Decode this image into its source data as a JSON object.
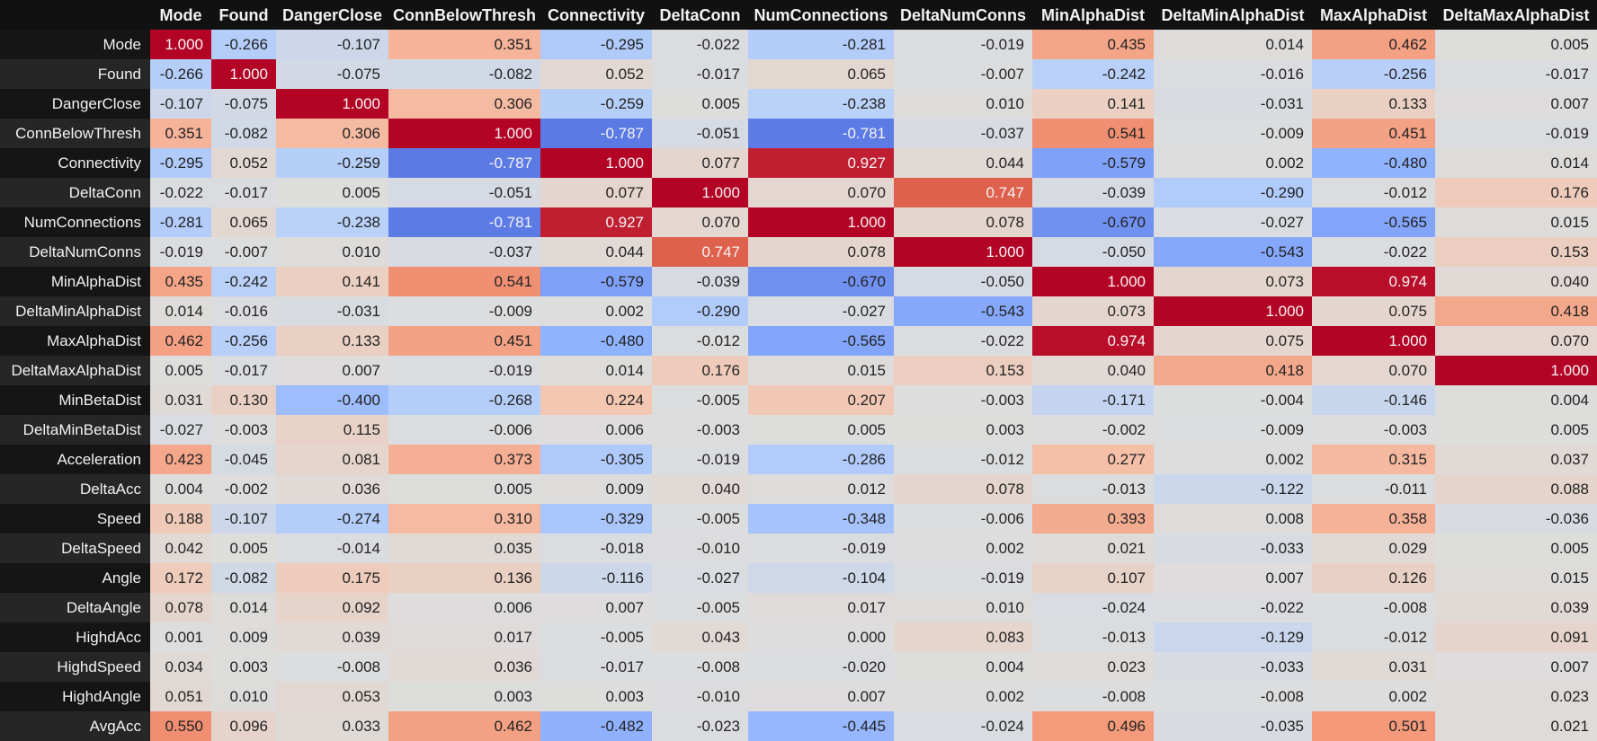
{
  "chart_data": {
    "type": "heatmap",
    "colormap": "coolwarm",
    "vmin": -1,
    "vmax": 1,
    "columns": [
      "Mode",
      "Found",
      "DangerClose",
      "ConnBelowThresh",
      "Connectivity",
      "DeltaConn",
      "NumConnections",
      "DeltaNumConns",
      "MinAlphaDist",
      "DeltaMinAlphaDist",
      "MaxAlphaDist",
      "DeltaMaxAlphaDist"
    ],
    "rows": [
      {
        "label": "Mode",
        "values": [
          "1.000",
          "-0.266",
          "-0.107",
          "0.351",
          "-0.295",
          "-0.022",
          "-0.281",
          "-0.019",
          "0.435",
          "0.014",
          "0.462",
          "0.005"
        ]
      },
      {
        "label": "Found",
        "values": [
          "-0.266",
          "1.000",
          "-0.075",
          "-0.082",
          "0.052",
          "-0.017",
          "0.065",
          "-0.007",
          "-0.242",
          "-0.016",
          "-0.256",
          "-0.017"
        ]
      },
      {
        "label": "DangerClose",
        "values": [
          "-0.107",
          "-0.075",
          "1.000",
          "0.306",
          "-0.259",
          "0.005",
          "-0.238",
          "0.010",
          "0.141",
          "-0.031",
          "0.133",
          "0.007"
        ]
      },
      {
        "label": "ConnBelowThresh",
        "values": [
          "0.351",
          "-0.082",
          "0.306",
          "1.000",
          "-0.787",
          "-0.051",
          "-0.781",
          "-0.037",
          "0.541",
          "-0.009",
          "0.451",
          "-0.019"
        ]
      },
      {
        "label": "Connectivity",
        "values": [
          "-0.295",
          "0.052",
          "-0.259",
          "-0.787",
          "1.000",
          "0.077",
          "0.927",
          "0.044",
          "-0.579",
          "0.002",
          "-0.480",
          "0.014"
        ]
      },
      {
        "label": "DeltaConn",
        "values": [
          "-0.022",
          "-0.017",
          "0.005",
          "-0.051",
          "0.077",
          "1.000",
          "0.070",
          "0.747",
          "-0.039",
          "-0.290",
          "-0.012",
          "0.176"
        ]
      },
      {
        "label": "NumConnections",
        "values": [
          "-0.281",
          "0.065",
          "-0.238",
          "-0.781",
          "0.927",
          "0.070",
          "1.000",
          "0.078",
          "-0.670",
          "-0.027",
          "-0.565",
          "0.015"
        ]
      },
      {
        "label": "DeltaNumConns",
        "values": [
          "-0.019",
          "-0.007",
          "0.010",
          "-0.037",
          "0.044",
          "0.747",
          "0.078",
          "1.000",
          "-0.050",
          "-0.543",
          "-0.022",
          "0.153"
        ]
      },
      {
        "label": "MinAlphaDist",
        "values": [
          "0.435",
          "-0.242",
          "0.141",
          "0.541",
          "-0.579",
          "-0.039",
          "-0.670",
          "-0.050",
          "1.000",
          "0.073",
          "0.974",
          "0.040"
        ]
      },
      {
        "label": "DeltaMinAlphaDist",
        "values": [
          "0.014",
          "-0.016",
          "-0.031",
          "-0.009",
          "0.002",
          "-0.290",
          "-0.027",
          "-0.543",
          "0.073",
          "1.000",
          "0.075",
          "0.418"
        ]
      },
      {
        "label": "MaxAlphaDist",
        "values": [
          "0.462",
          "-0.256",
          "0.133",
          "0.451",
          "-0.480",
          "-0.012",
          "-0.565",
          "-0.022",
          "0.974",
          "0.075",
          "1.000",
          "0.070"
        ]
      },
      {
        "label": "DeltaMaxAlphaDist",
        "values": [
          "0.005",
          "-0.017",
          "0.007",
          "-0.019",
          "0.014",
          "0.176",
          "0.015",
          "0.153",
          "0.040",
          "0.418",
          "0.070",
          "1.000"
        ]
      },
      {
        "label": "MinBetaDist",
        "values": [
          "0.031",
          "0.130",
          "-0.400",
          "-0.268",
          "0.224",
          "-0.005",
          "0.207",
          "-0.003",
          "-0.171",
          "-0.004",
          "-0.146",
          "0.004"
        ]
      },
      {
        "label": "DeltaMinBetaDist",
        "values": [
          "-0.027",
          "-0.003",
          "0.115",
          "-0.006",
          "0.006",
          "-0.003",
          "0.005",
          "0.003",
          "-0.002",
          "-0.009",
          "-0.003",
          "0.005"
        ]
      },
      {
        "label": "Acceleration",
        "values": [
          "0.423",
          "-0.045",
          "0.081",
          "0.373",
          "-0.305",
          "-0.019",
          "-0.286",
          "-0.012",
          "0.277",
          "0.002",
          "0.315",
          "0.037"
        ]
      },
      {
        "label": "DeltaAcc",
        "values": [
          "0.004",
          "-0.002",
          "0.036",
          "0.005",
          "0.009",
          "0.040",
          "0.012",
          "0.078",
          "-0.013",
          "-0.122",
          "-0.011",
          "0.088"
        ]
      },
      {
        "label": "Speed",
        "values": [
          "0.188",
          "-0.107",
          "-0.274",
          "0.310",
          "-0.329",
          "-0.005",
          "-0.348",
          "-0.006",
          "0.393",
          "0.008",
          "0.358",
          "-0.036"
        ]
      },
      {
        "label": "DeltaSpeed",
        "values": [
          "0.042",
          "0.005",
          "-0.014",
          "0.035",
          "-0.018",
          "-0.010",
          "-0.019",
          "0.002",
          "0.021",
          "-0.033",
          "0.029",
          "0.005"
        ]
      },
      {
        "label": "Angle",
        "values": [
          "0.172",
          "-0.082",
          "0.175",
          "0.136",
          "-0.116",
          "-0.027",
          "-0.104",
          "-0.019",
          "0.107",
          "0.007",
          "0.126",
          "0.015"
        ]
      },
      {
        "label": "DeltaAngle",
        "values": [
          "0.078",
          "0.014",
          "0.092",
          "0.006",
          "0.007",
          "-0.005",
          "0.017",
          "0.010",
          "-0.024",
          "-0.022",
          "-0.008",
          "0.039"
        ]
      },
      {
        "label": "HighdAcc",
        "values": [
          "0.001",
          "0.009",
          "0.039",
          "0.017",
          "-0.005",
          "0.043",
          "0.000",
          "0.083",
          "-0.013",
          "-0.129",
          "-0.012",
          "0.091"
        ]
      },
      {
        "label": "HighdSpeed",
        "values": [
          "0.034",
          "0.003",
          "-0.008",
          "0.036",
          "-0.017",
          "-0.008",
          "-0.020",
          "0.004",
          "0.023",
          "-0.033",
          "0.031",
          "0.007"
        ]
      },
      {
        "label": "HighdAngle",
        "values": [
          "0.051",
          "0.010",
          "0.053",
          "0.003",
          "0.003",
          "-0.010",
          "0.007",
          "0.002",
          "-0.008",
          "-0.008",
          "0.002",
          "0.023"
        ]
      },
      {
        "label": "AvgAcc",
        "values": [
          "0.550",
          "0.096",
          "0.033",
          "0.462",
          "-0.482",
          "-0.023",
          "-0.445",
          "-0.024",
          "0.496",
          "-0.035",
          "0.501",
          "0.021"
        ]
      }
    ]
  }
}
